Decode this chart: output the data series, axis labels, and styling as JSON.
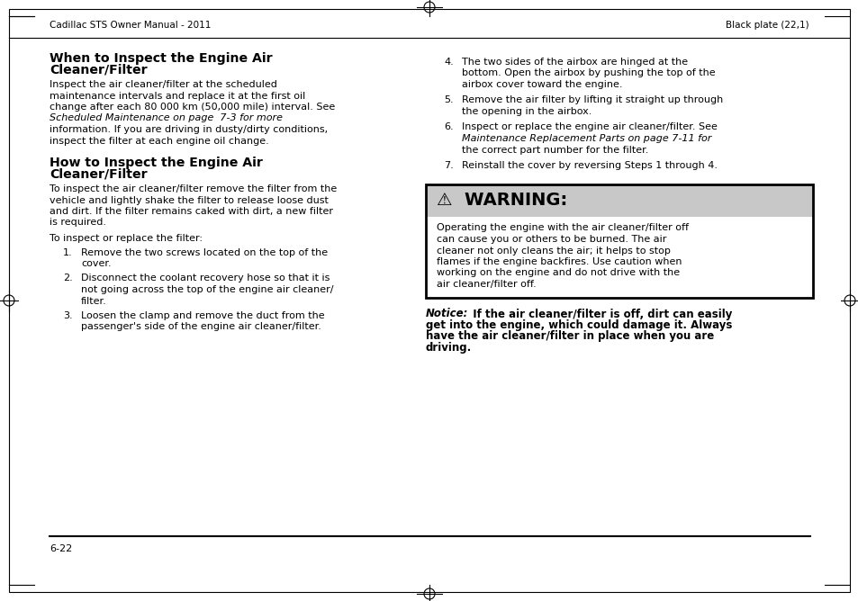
{
  "header_left": "Cadillac STS Owner Manual - 2011",
  "header_right": "Black plate (22,1)",
  "footer_page": "6-22",
  "bg_color": "#ffffff",
  "warning_bg": "#c8c8c8",
  "warning_border": "#000000"
}
